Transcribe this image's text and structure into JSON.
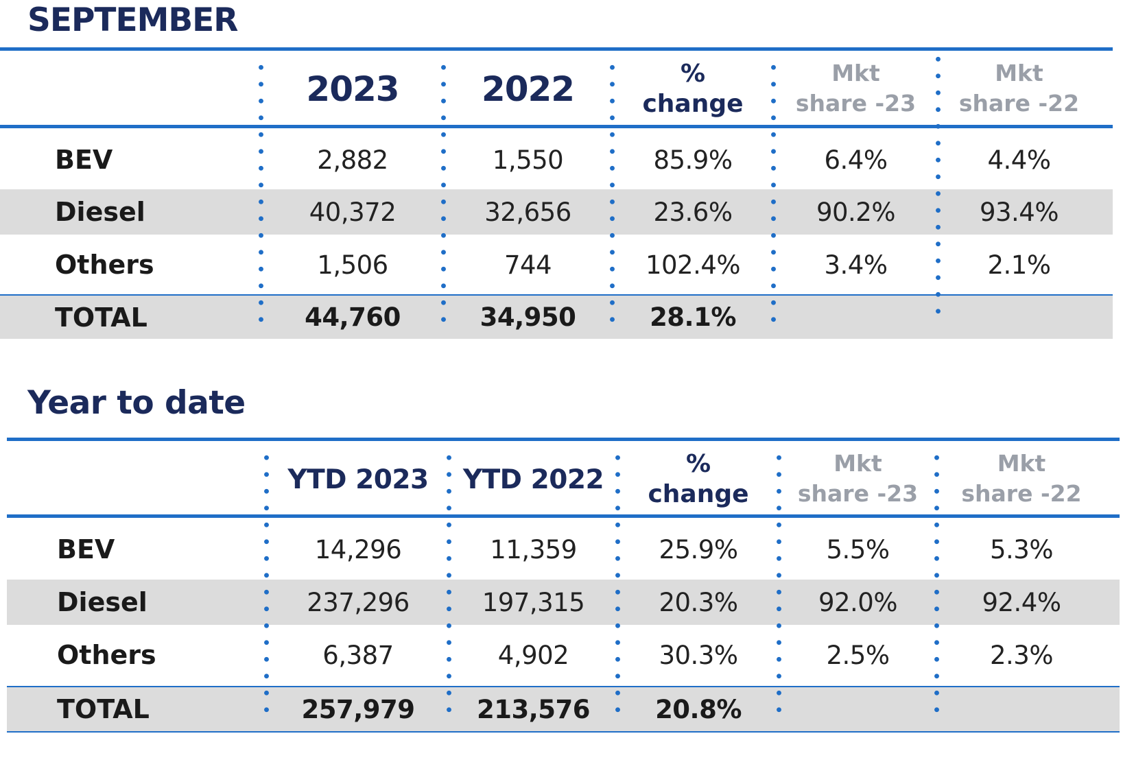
{
  "monthly": {
    "title": "SEPTEMBER",
    "headers": {
      "col_2023": "2023",
      "col_2022": "2022",
      "change_line1": "%",
      "change_line2": "change",
      "share23_line1": "Mkt",
      "share23_line2": "share -23",
      "share22_line1": "Mkt",
      "share22_line2": "share -22"
    },
    "rows": [
      {
        "label": "BEV",
        "v2023": "2,882",
        "v2022": "1,550",
        "change": "85.9%",
        "share23": "6.4%",
        "share22": "4.4%"
      },
      {
        "label": "Diesel",
        "v2023": "40,372",
        "v2022": "32,656",
        "change": "23.6%",
        "share23": "90.2%",
        "share22": "93.4%"
      },
      {
        "label": "Others",
        "v2023": "1,506",
        "v2022": "744",
        "change": "102.4%",
        "share23": "3.4%",
        "share22": "2.1%"
      }
    ],
    "total": {
      "label": "TOTAL",
      "v2023": "44,760",
      "v2022": "34,950",
      "change": "28.1%"
    }
  },
  "ytd": {
    "title": "Year to date",
    "headers": {
      "col_2023": "YTD 2023",
      "col_2022": "YTD 2022",
      "change_line1": "%",
      "change_line2": "change",
      "share23_line1": "Mkt",
      "share23_line2": "share -23",
      "share22_line1": "Mkt",
      "share22_line2": "share -22"
    },
    "rows": [
      {
        "label": "BEV",
        "v2023": "14,296",
        "v2022": "11,359",
        "change": "25.9%",
        "share23": "5.5%",
        "share22": "5.3%"
      },
      {
        "label": "Diesel",
        "v2023": "237,296",
        "v2022": "197,315",
        "change": "20.3%",
        "share23": "92.0%",
        "share22": "92.4%"
      },
      {
        "label": "Others",
        "v2023": "6,387",
        "v2022": "4,902",
        "change": "30.3%",
        "share23": "2.5%",
        "share22": "2.3%"
      }
    ],
    "total": {
      "label": "TOTAL",
      "v2023": "257,979",
      "v2022": "213,576",
      "change": "20.8%"
    }
  },
  "colors": {
    "rule_blue": "#1f6ec7",
    "heading_navy": "#1b2a5b",
    "share_header_gray": "#9a9fa8",
    "stripe_gray": "#dcdcdc"
  }
}
